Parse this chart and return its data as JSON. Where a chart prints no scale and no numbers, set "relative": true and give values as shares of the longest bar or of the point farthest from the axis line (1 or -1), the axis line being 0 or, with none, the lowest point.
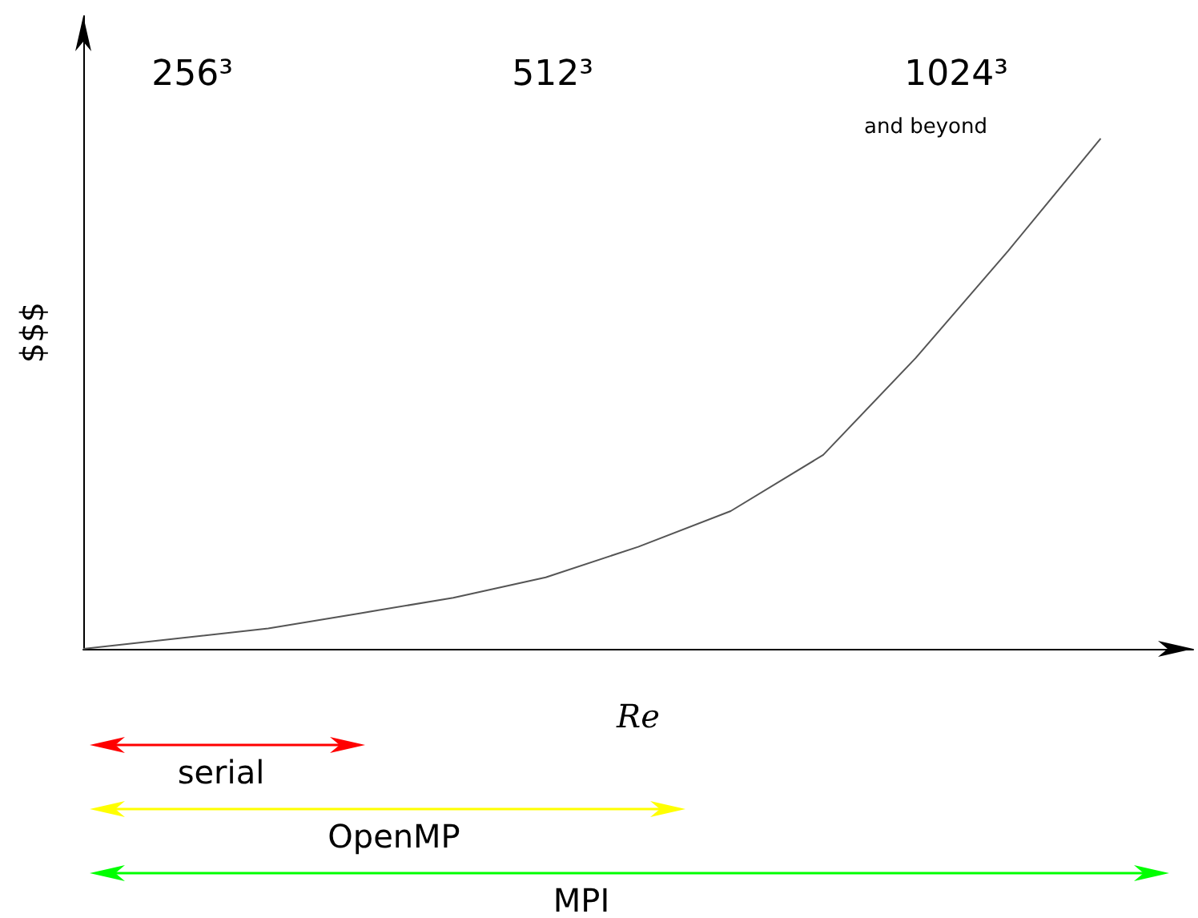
{
  "chart_data": {
    "type": "line",
    "relative": true,
    "xlabel": "Re",
    "ylabel": "$$$",
    "categories": [
      null,
      null,
      null,
      null,
      null,
      null,
      null,
      null,
      null,
      null,
      null,
      null,
      null
    ],
    "series": [
      {
        "color": "#555555",
        "values": [
          0,
          0.02,
          0.04,
          0.07,
          0.1,
          0.14,
          0.2,
          0.27,
          0.38,
          0.57,
          0.78,
          1,
          null
        ]
      }
    ],
    "marker": "none",
    "line_style": "solid",
    "grid": false,
    "annotations": [
      "256³",
      "512³",
      "1024³",
      "and beyond",
      "serial",
      "OpenMP",
      "MPI"
    ]
  }
}
